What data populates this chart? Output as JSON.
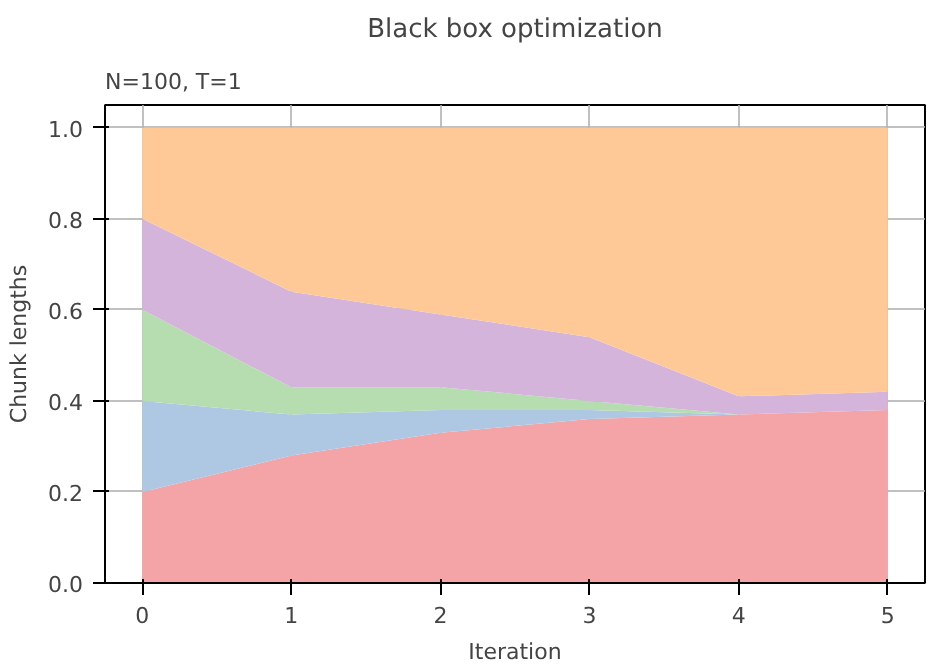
{
  "chart_data": {
    "type": "area",
    "stacked": true,
    "title": "Black box optimization",
    "xlabel": "Iteration",
    "ylabel": "Chunk lengths",
    "annotations": [
      "N=100, T=1"
    ],
    "x": [
      0,
      1,
      2,
      3,
      4,
      5
    ],
    "series": [
      {
        "color": "#f4a3a6",
        "values": [
          0.2,
          0.28,
          0.33,
          0.36,
          0.37,
          0.38
        ]
      },
      {
        "color": "#aec8e3",
        "values": [
          0.2,
          0.09,
          0.05,
          0.02,
          0.0,
          0.0
        ]
      },
      {
        "color": "#b5ddb0",
        "values": [
          0.2,
          0.06,
          0.05,
          0.02,
          0.0,
          0.0
        ]
      },
      {
        "color": "#d4b4da",
        "values": [
          0.2,
          0.21,
          0.16,
          0.14,
          0.04,
          0.04
        ]
      },
      {
        "color": "#fec996",
        "values": [
          0.2,
          0.36,
          0.41,
          0.46,
          0.59,
          0.58
        ]
      }
    ],
    "xlim": [
      -0.25,
      5.25
    ],
    "ylim": [
      0,
      1.05
    ],
    "xticks": [
      0,
      1,
      2,
      3,
      4,
      5
    ],
    "yticks": [
      {
        "value": 0,
        "label": "0.0"
      },
      {
        "value": 0.2,
        "label": "0.2"
      },
      {
        "value": 0.4,
        "label": "0.4"
      },
      {
        "value": 0.6,
        "label": "0.6"
      },
      {
        "value": 0.8,
        "label": "0.8"
      },
      {
        "value": 1,
        "label": "1.0"
      }
    ],
    "grid": true
  }
}
